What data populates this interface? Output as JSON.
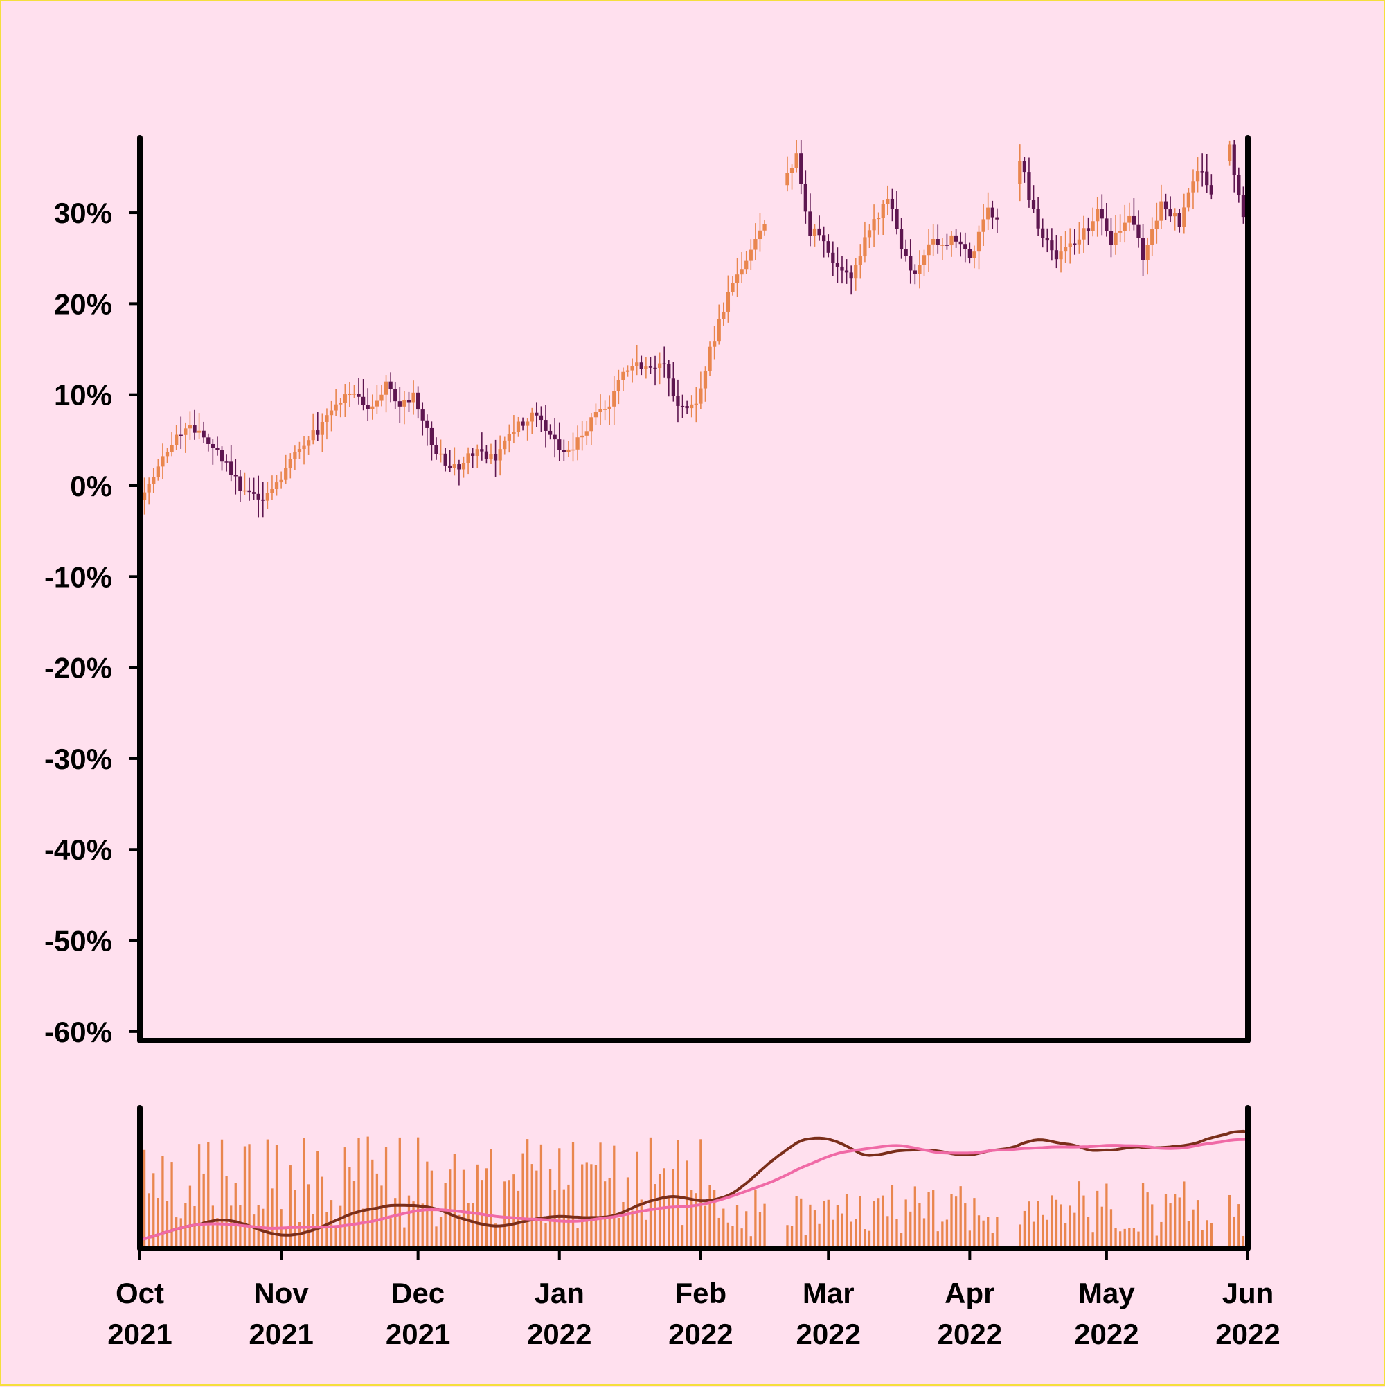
{
  "chart_data": {
    "type": "candlestick",
    "price_panel": {
      "y_ticks": [
        "30%",
        "20%",
        "10%",
        "0%",
        "-10%",
        "-20%",
        "-30%",
        "-40%",
        "-50%",
        "-60%"
      ],
      "y_tick_values": [
        30,
        20,
        10,
        0,
        -10,
        -20,
        -30,
        -40,
        -50,
        -60
      ],
      "ylim": [
        -61,
        38
      ],
      "grid": false,
      "close_path": [
        [
          "2021-10-01",
          -1
        ],
        [
          "2021-10-04",
          1
        ],
        [
          "2021-10-08",
          5
        ],
        [
          "2021-10-12",
          7
        ],
        [
          "2021-10-15",
          5
        ],
        [
          "2021-10-19",
          3
        ],
        [
          "2021-10-23",
          0
        ],
        [
          "2021-10-26",
          -1
        ],
        [
          "2021-10-28",
          -2
        ],
        [
          "2021-11-01",
          1
        ],
        [
          "2021-11-05",
          4
        ],
        [
          "2021-11-09",
          6
        ],
        [
          "2021-11-13",
          9
        ],
        [
          "2021-11-17",
          10
        ],
        [
          "2021-11-20",
          8
        ],
        [
          "2021-11-24",
          11
        ],
        [
          "2021-11-27",
          9
        ],
        [
          "2021-11-30",
          10
        ],
        [
          "2021-12-03",
          6
        ],
        [
          "2021-12-06",
          3
        ],
        [
          "2021-12-10",
          2
        ],
        [
          "2021-12-14",
          4
        ],
        [
          "2021-12-18",
          3
        ],
        [
          "2021-12-21",
          6
        ],
        [
          "2021-12-24",
          7
        ],
        [
          "2021-12-27",
          8
        ],
        [
          "2021-12-30",
          5
        ],
        [
          "2022-01-02",
          4
        ],
        [
          "2022-01-06",
          5
        ],
        [
          "2022-01-09",
          8
        ],
        [
          "2022-01-12",
          9
        ],
        [
          "2022-01-16",
          13
        ],
        [
          "2022-01-20",
          13
        ],
        [
          "2022-01-24",
          13
        ],
        [
          "2022-01-27",
          9
        ],
        [
          "2022-01-31",
          9
        ],
        [
          "2022-02-03",
          15
        ],
        [
          "2022-02-07",
          21
        ],
        [
          "2022-02-11",
          25
        ],
        [
          "2022-02-15",
          29
        ],
        [
          "2022-02-19",
          33
        ],
        [
          "2022-02-22",
          36
        ],
        [
          "2022-02-25",
          28
        ],
        [
          "2022-02-28",
          27
        ],
        [
          "2022-03-03",
          24
        ],
        [
          "2022-03-06",
          23
        ],
        [
          "2022-03-10",
          28
        ],
        [
          "2022-03-14",
          32
        ],
        [
          "2022-03-17",
          26
        ],
        [
          "2022-03-20",
          23
        ],
        [
          "2022-03-24",
          27
        ],
        [
          "2022-03-28",
          27
        ],
        [
          "2022-04-01",
          25
        ],
        [
          "2022-04-05",
          30
        ],
        [
          "2022-04-09",
          29
        ],
        [
          "2022-04-12",
          36
        ],
        [
          "2022-04-16",
          28
        ],
        [
          "2022-04-20",
          25
        ],
        [
          "2022-04-25",
          27
        ],
        [
          "2022-04-29",
          30
        ],
        [
          "2022-05-02",
          27
        ],
        [
          "2022-05-06",
          30
        ],
        [
          "2022-05-09",
          25
        ],
        [
          "2022-05-13",
          31
        ],
        [
          "2022-05-17",
          29
        ],
        [
          "2022-05-21",
          35
        ],
        [
          "2022-05-24",
          32
        ],
        [
          "2022-05-28",
          37
        ],
        [
          "2022-06-01",
          27
        ]
      ]
    },
    "volume_panel": {
      "series": [
        {
          "color": "#e9864e",
          "kind": "bars"
        },
        {
          "color": "#7a2e1a",
          "kind": "line"
        },
        {
          "color": "#f06aa6",
          "kind": "line"
        }
      ]
    },
    "x_axis": {
      "ticks": [
        {
          "month": "Oct",
          "year": "2021",
          "date": "2021-10-01"
        },
        {
          "month": "Nov",
          "year": "2021",
          "date": "2021-11-01"
        },
        {
          "month": "Dec",
          "year": "2021",
          "date": "2021-12-01"
        },
        {
          "month": "Jan",
          "year": "2022",
          "date": "2022-01-01"
        },
        {
          "month": "Feb",
          "year": "2022",
          "date": "2022-02-01"
        },
        {
          "month": "Mar",
          "year": "2022",
          "date": "2022-03-01"
        },
        {
          "month": "Apr",
          "year": "2022",
          "date": "2022-04-01"
        },
        {
          "month": "May",
          "year": "2022",
          "date": "2022-05-01"
        },
        {
          "month": "Jun",
          "year": "2022",
          "date": "2022-06-01"
        }
      ],
      "range": [
        "2021-10-01",
        "2022-06-01"
      ]
    },
    "colors": {
      "background": "#ffe0ee",
      "up": "#e9864e",
      "down": "#5e1650",
      "volume": "#e9864e",
      "ma_fast": "#7a2e1a",
      "ma_slow": "#f06aa6",
      "axis": "#000000",
      "frame": "#f5df3c"
    }
  }
}
